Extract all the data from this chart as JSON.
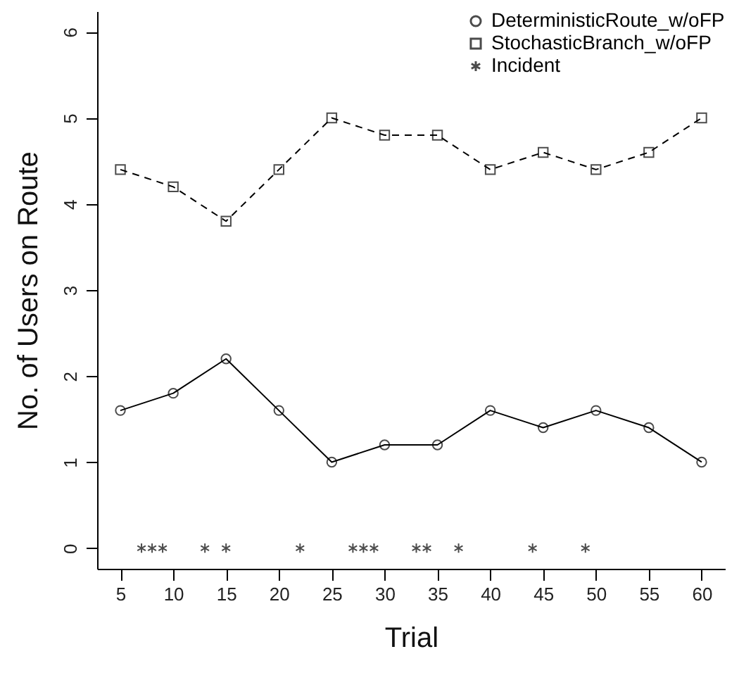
{
  "chart_data": {
    "type": "line",
    "xlabel": "Trial",
    "ylabel": "No. of Users on Route",
    "x": [
      5,
      10,
      15,
      20,
      25,
      30,
      35,
      40,
      45,
      50,
      55,
      60
    ],
    "series": [
      {
        "name": "DeterministicRoute_w/oFP",
        "color": "#000000",
        "marker": "circle",
        "line_style": "solid",
        "values": [
          1.6,
          1.8,
          2.2,
          1.6,
          1.0,
          1.2,
          1.2,
          1.6,
          1.4,
          1.6,
          1.4,
          1.0
        ]
      },
      {
        "name": "StochasticBranch_w/oFP",
        "color": "#000000",
        "marker": "square",
        "line_style": "dashed",
        "values": [
          4.4,
          4.2,
          3.8,
          4.4,
          5.0,
          4.8,
          4.8,
          4.4,
          4.6,
          4.4,
          4.6,
          5.0
        ]
      },
      {
        "name": "Incident",
        "type": "scatter",
        "color": "#000000",
        "marker": "cross",
        "x": [
          7,
          8,
          9,
          13,
          15,
          22,
          27,
          28,
          29,
          33,
          34,
          37,
          44,
          49
        ],
        "values": [
          0,
          0,
          0,
          0,
          0,
          0,
          0,
          0,
          0,
          0,
          0,
          0,
          0,
          0
        ]
      }
    ],
    "xlim": [
      2.8,
      62.2
    ],
    "xticks": [
      5,
      10,
      15,
      20,
      25,
      30,
      35,
      40,
      45,
      50,
      55,
      60
    ],
    "ylim": [
      -0.24,
      6.24
    ],
    "yticks": [
      0,
      1,
      2,
      3,
      4,
      5,
      6
    ],
    "grid": false,
    "legend": "top right"
  }
}
